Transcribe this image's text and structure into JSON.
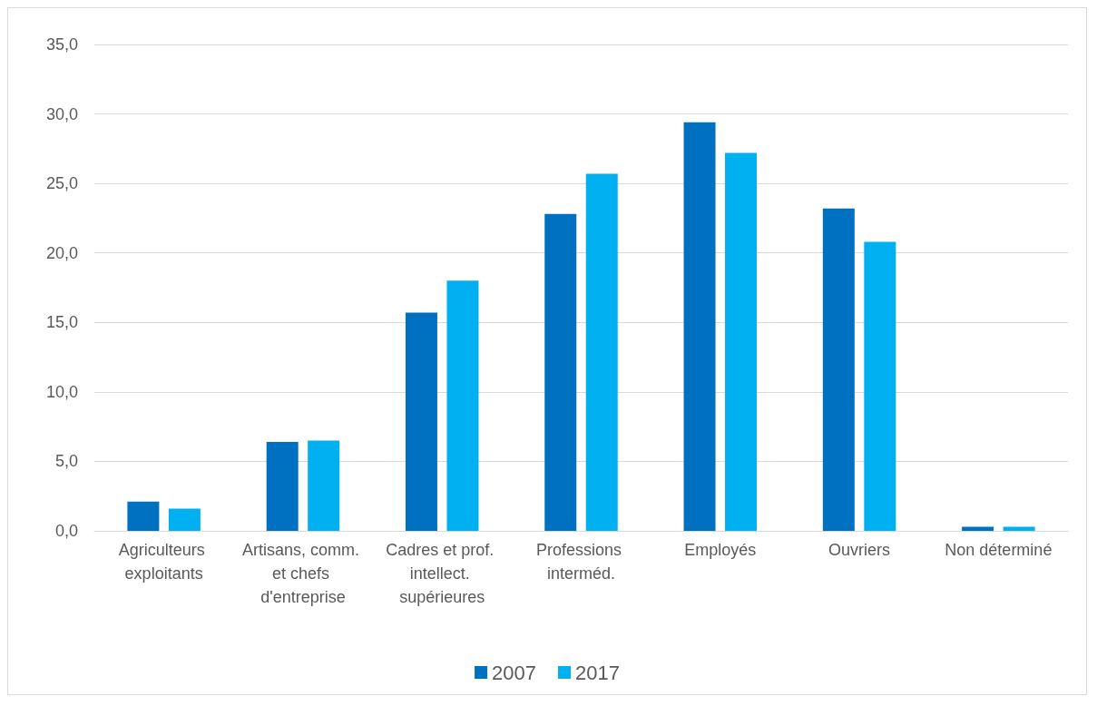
{
  "chart_data": {
    "type": "bar",
    "categories": [
      "Agriculteurs exploitants",
      "Artisans, comm. et chefs d'entreprise",
      "Cadres et prof. intellect. supérieures",
      "Professions interméd.",
      "Employés",
      "Ouvriers",
      "Non déterminé"
    ],
    "series": [
      {
        "name": "2007",
        "color": "#0070c0",
        "values": [
          2.1,
          6.4,
          15.7,
          22.8,
          29.4,
          23.2,
          0.3
        ]
      },
      {
        "name": "2017",
        "color": "#00b0f0",
        "values": [
          1.6,
          6.5,
          18.0,
          25.7,
          27.2,
          20.8,
          0.3
        ]
      }
    ],
    "ylim": [
      0,
      35
    ],
    "yticks": [
      {
        "value": 0,
        "label": "0,0"
      },
      {
        "value": 5,
        "label": "5,0"
      },
      {
        "value": 10,
        "label": "10,0"
      },
      {
        "value": 15,
        "label": "15,0"
      },
      {
        "value": 20,
        "label": "20,0"
      },
      {
        "value": 25,
        "label": "25,0"
      },
      {
        "value": 30,
        "label": "30,0"
      },
      {
        "value": 35,
        "label": "35,0"
      }
    ],
    "grid": "y",
    "legend": "bottom"
  }
}
